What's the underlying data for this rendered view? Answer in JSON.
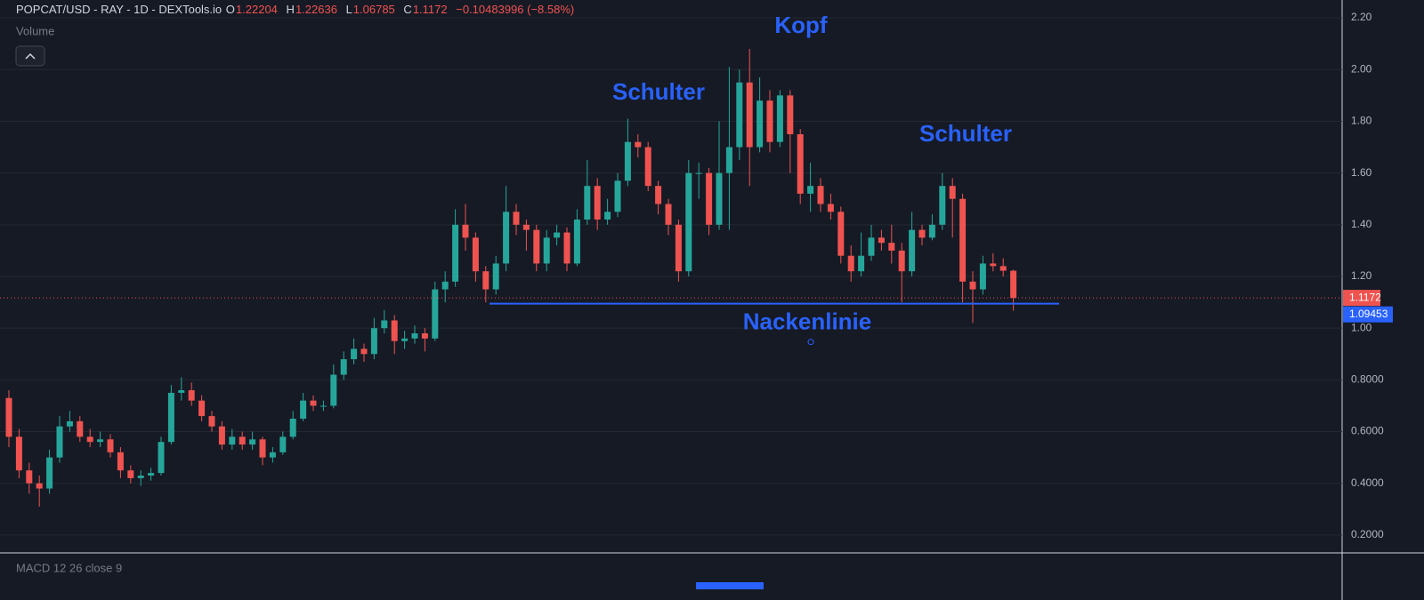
{
  "chart_data": {
    "type": "candlestick",
    "symbol": "POPCAT/USD - RAY - 1D - DEXTools.io",
    "ohlc_letters": [
      "O",
      "H",
      "L",
      "C"
    ],
    "change_label": "−0.10483996 (−8.58%)",
    "indicators": [
      "Volume",
      "MACD 12 26 close 9"
    ],
    "up_color": "#26a69a",
    "down_color": "#ef5350",
    "ylim": [
      0.131,
      2.269
    ],
    "yticks": [
      {
        "value": 0.2,
        "label": "0.2000"
      },
      {
        "value": 0.4,
        "label": "0.4000"
      },
      {
        "value": 0.6,
        "label": "0.6000"
      },
      {
        "value": 0.8,
        "label": "0.8000"
      },
      {
        "value": 1.0,
        "label": "1.00"
      },
      {
        "value": 1.2,
        "label": "1.20"
      },
      {
        "value": 1.4,
        "label": "1.40"
      },
      {
        "value": 1.6,
        "label": "1.60"
      },
      {
        "value": 1.8,
        "label": "1.80"
      },
      {
        "value": 2.0,
        "label": "2.00"
      },
      {
        "value": 2.2,
        "label": "2.20"
      }
    ],
    "grid": true,
    "open": [
      0.73,
      0.58,
      0.45,
      0.4,
      0.38,
      0.5,
      0.62,
      0.64,
      0.58,
      0.56,
      0.57,
      0.52,
      0.45,
      0.42,
      0.43,
      0.44,
      0.56,
      0.75,
      0.76,
      0.72,
      0.66,
      0.62,
      0.55,
      0.58,
      0.55,
      0.57,
      0.5,
      0.52,
      0.58,
      0.65,
      0.72,
      0.7,
      0.7,
      0.82,
      0.88,
      0.92,
      0.9,
      1.0,
      1.03,
      0.95,
      0.96,
      0.98,
      0.96,
      1.15,
      1.18,
      1.4,
      1.35,
      1.22,
      1.15,
      1.25,
      1.45,
      1.4,
      1.38,
      1.25,
      1.35,
      1.37,
      1.25,
      1.42,
      1.55,
      1.42,
      1.45,
      1.57,
      1.72,
      1.7,
      1.55,
      1.48,
      1.4,
      1.22,
      1.6,
      1.6,
      1.4,
      1.6,
      1.7,
      1.95,
      1.7,
      1.88,
      1.72,
      1.9,
      1.75,
      1.52,
      1.55,
      1.48,
      1.45,
      1.28,
      1.22,
      1.28,
      1.35,
      1.33,
      1.3,
      1.22,
      1.38,
      1.35,
      1.4,
      1.55,
      1.5,
      1.18,
      1.15,
      1.25,
      1.24,
      1.22204
    ],
    "high": [
      0.76,
      0.61,
      0.48,
      0.43,
      0.53,
      0.66,
      0.68,
      0.66,
      0.61,
      0.6,
      0.59,
      0.54,
      0.47,
      0.45,
      0.46,
      0.58,
      0.78,
      0.81,
      0.79,
      0.74,
      0.68,
      0.64,
      0.61,
      0.6,
      0.6,
      0.58,
      0.54,
      0.6,
      0.68,
      0.75,
      0.74,
      0.72,
      0.86,
      0.91,
      0.96,
      0.94,
      1.04,
      1.07,
      1.05,
      0.99,
      1.01,
      1.0,
      1.18,
      1.22,
      1.46,
      1.48,
      1.37,
      1.24,
      1.28,
      1.55,
      1.48,
      1.42,
      1.4,
      1.38,
      1.4,
      1.39,
      1.46,
      1.65,
      1.58,
      1.5,
      1.6,
      1.81,
      1.75,
      1.72,
      1.57,
      1.5,
      1.42,
      1.65,
      1.64,
      1.62,
      1.8,
      2.01,
      2.0,
      2.08,
      1.97,
      1.92,
      1.92,
      1.92,
      1.77,
      1.64,
      1.58,
      1.52,
      1.47,
      1.32,
      1.37,
      1.4,
      1.38,
      1.4,
      1.33,
      1.45,
      1.4,
      1.44,
      1.6,
      1.58,
      1.52,
      1.22,
      1.28,
      1.29,
      1.27,
      1.22636
    ],
    "low": [
      0.54,
      0.42,
      0.36,
      0.31,
      0.36,
      0.48,
      0.6,
      0.56,
      0.54,
      0.54,
      0.5,
      0.42,
      0.4,
      0.39,
      0.41,
      0.43,
      0.55,
      0.72,
      0.7,
      0.64,
      0.6,
      0.53,
      0.53,
      0.53,
      0.53,
      0.47,
      0.48,
      0.51,
      0.57,
      0.64,
      0.68,
      0.68,
      0.69,
      0.8,
      0.86,
      0.87,
      0.88,
      0.98,
      0.9,
      0.92,
      0.94,
      0.91,
      0.95,
      1.1,
      1.16,
      1.3,
      1.18,
      1.1,
      1.13,
      1.22,
      1.36,
      1.3,
      1.22,
      1.22,
      1.32,
      1.22,
      1.24,
      1.4,
      1.38,
      1.4,
      1.43,
      1.55,
      1.66,
      1.53,
      1.44,
      1.36,
      1.18,
      1.2,
      1.5,
      1.36,
      1.38,
      1.38,
      1.65,
      1.55,
      1.68,
      1.68,
      1.7,
      1.6,
      1.48,
      1.45,
      1.45,
      1.42,
      1.25,
      1.18,
      1.2,
      1.26,
      1.3,
      1.25,
      1.1,
      1.2,
      1.32,
      1.34,
      1.38,
      1.35,
      1.1,
      1.02,
      1.13,
      1.22,
      1.2,
      1.06785
    ],
    "close": [
      0.58,
      0.45,
      0.4,
      0.38,
      0.5,
      0.62,
      0.64,
      0.58,
      0.56,
      0.57,
      0.52,
      0.45,
      0.42,
      0.43,
      0.44,
      0.56,
      0.75,
      0.76,
      0.72,
      0.66,
      0.62,
      0.55,
      0.58,
      0.55,
      0.57,
      0.5,
      0.52,
      0.58,
      0.65,
      0.72,
      0.7,
      0.7,
      0.82,
      0.88,
      0.92,
      0.9,
      1.0,
      1.03,
      0.95,
      0.96,
      0.98,
      0.96,
      1.15,
      1.18,
      1.4,
      1.35,
      1.22,
      1.15,
      1.25,
      1.45,
      1.4,
      1.38,
      1.25,
      1.35,
      1.37,
      1.25,
      1.42,
      1.55,
      1.42,
      1.45,
      1.57,
      1.72,
      1.7,
      1.55,
      1.48,
      1.4,
      1.22,
      1.6,
      1.6,
      1.4,
      1.6,
      1.7,
      1.95,
      1.7,
      1.88,
      1.72,
      1.9,
      1.75,
      1.52,
      1.55,
      1.48,
      1.45,
      1.28,
      1.22,
      1.28,
      1.35,
      1.33,
      1.3,
      1.22,
      1.38,
      1.35,
      1.4,
      1.55,
      1.5,
      1.18,
      1.15,
      1.25,
      1.24,
      1.22204,
      1.1172
    ],
    "neckline": {
      "value": 1.09453,
      "label": "Nackenlinie",
      "color": "#2962ff"
    },
    "annotations": [
      "Schulter",
      "Kopf",
      "Schulter"
    ]
  }
}
